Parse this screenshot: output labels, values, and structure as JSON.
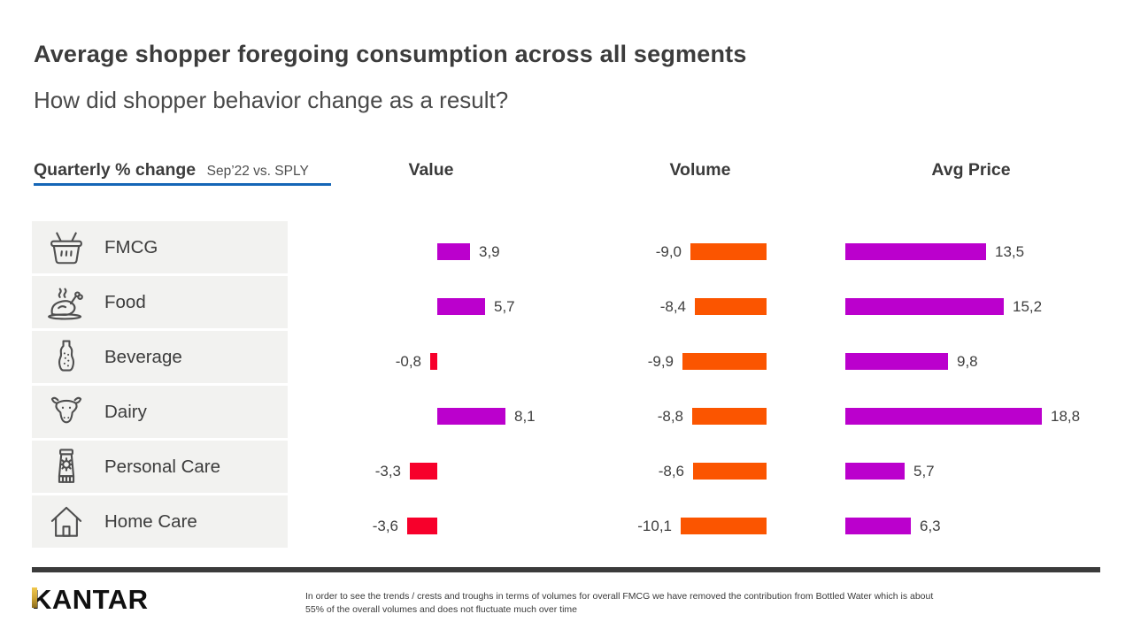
{
  "page": {
    "title": "Average shopper foregoing consumption across all segments",
    "subtitle": "How did shopper behavior change as a result?"
  },
  "section": {
    "label": "Quarterly % change",
    "sublabel": "Sep’22 vs. SPLY"
  },
  "columns": [
    {
      "key": "value",
      "label": "Value"
    },
    {
      "key": "volume",
      "label": "Volume"
    },
    {
      "key": "avg_price",
      "label": "Avg Price"
    }
  ],
  "rows": [
    {
      "label": "FMCG",
      "icon": "basket-icon",
      "value": 3.9,
      "value_label": "3,9",
      "volume": -9.0,
      "volume_label": "-9,0",
      "avg_price": 13.5,
      "avg_price_label": "13,5"
    },
    {
      "label": "Food",
      "icon": "chicken-icon",
      "value": 5.7,
      "value_label": "5,7",
      "volume": -8.4,
      "volume_label": "-8,4",
      "avg_price": 15.2,
      "avg_price_label": "15,2"
    },
    {
      "label": "Beverage",
      "icon": "bottle-icon",
      "value": -0.8,
      "value_label": "-0,8",
      "volume": -9.9,
      "volume_label": "-9,9",
      "avg_price": 9.8,
      "avg_price_label": "9,8"
    },
    {
      "label": "Dairy",
      "icon": "cow-icon",
      "value": 8.1,
      "value_label": "8,1",
      "volume": -8.8,
      "volume_label": "-8,8",
      "avg_price": 18.8,
      "avg_price_label": "18,8"
    },
    {
      "label": "Personal Care",
      "icon": "tube-icon",
      "value": -3.3,
      "value_label": "-3,3",
      "volume": -8.6,
      "volume_label": "-8,6",
      "avg_price": 5.7,
      "avg_price_label": "5,7"
    },
    {
      "label": "Home Care",
      "icon": "house-icon",
      "value": -3.6,
      "value_label": "-3,6",
      "volume": -10.1,
      "volume_label": "-10,1",
      "avg_price": 6.3,
      "avg_price_label": "6,3"
    }
  ],
  "chart_data": {
    "type": "bar",
    "orientation": "horizontal",
    "title": "Quarterly % change — Sep’22 vs. SPLY",
    "categories": [
      "FMCG",
      "Food",
      "Beverage",
      "Dairy",
      "Personal Care",
      "Home Care"
    ],
    "series": [
      {
        "name": "Value",
        "values": [
          3.9,
          5.7,
          -0.8,
          8.1,
          -3.3,
          -3.6
        ]
      },
      {
        "name": "Volume",
        "values": [
          -9.0,
          -8.4,
          -9.9,
          -8.8,
          -8.6,
          -10.1
        ]
      },
      {
        "name": "Avg Price",
        "values": [
          13.5,
          15.2,
          9.8,
          18.8,
          5.7,
          6.3
        ]
      }
    ],
    "unit": "%",
    "value_format": "decimal-comma",
    "legend": "none",
    "grid": false,
    "positive_color_value": "#BB00CD",
    "negative_color_value": "#F7002B",
    "volume_color": "#FB5500",
    "avg_price_color": "#BB00CD"
  },
  "colors": {
    "magenta": "#BB00CD",
    "red": "#F7002B",
    "orange": "#FB5500",
    "blue_underline": "#1566B7",
    "row_bg": "#F2F2F0",
    "divider": "#3B3B3B",
    "gold": "#CAA133"
  },
  "footer": {
    "logo": "KANTAR",
    "note_lines": [
      "In order to see the trends / crests and troughs in terms of volumes for overall FMCG we have removed the contribution from Bottled Water which is about",
      "55% of the overall volumes and does not fluctuate much over time"
    ]
  }
}
